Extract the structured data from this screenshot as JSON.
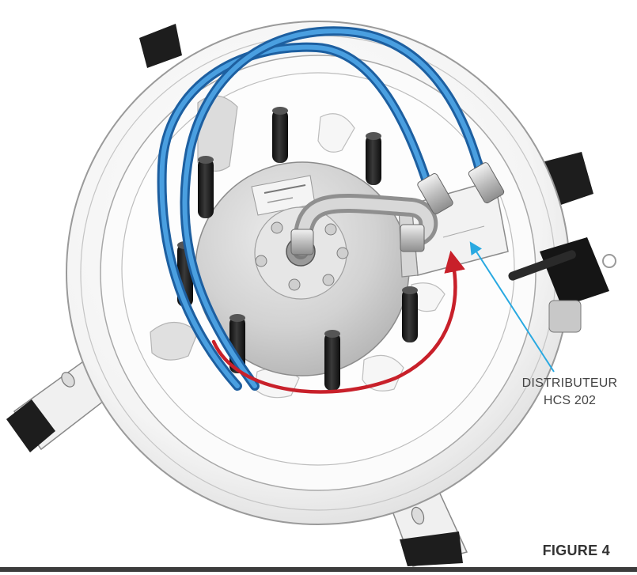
{
  "callout": {
    "line1": "DISTRIBUTEUR",
    "line2": "HCS 202"
  },
  "caption": "FIGURE 4",
  "colors": {
    "hose_blue": "#2f7fc8",
    "arrow_red": "#c8202a",
    "leader_cyan": "#29a9e1",
    "pin_black": "#1c1c1c",
    "knob_black": "#151515"
  }
}
